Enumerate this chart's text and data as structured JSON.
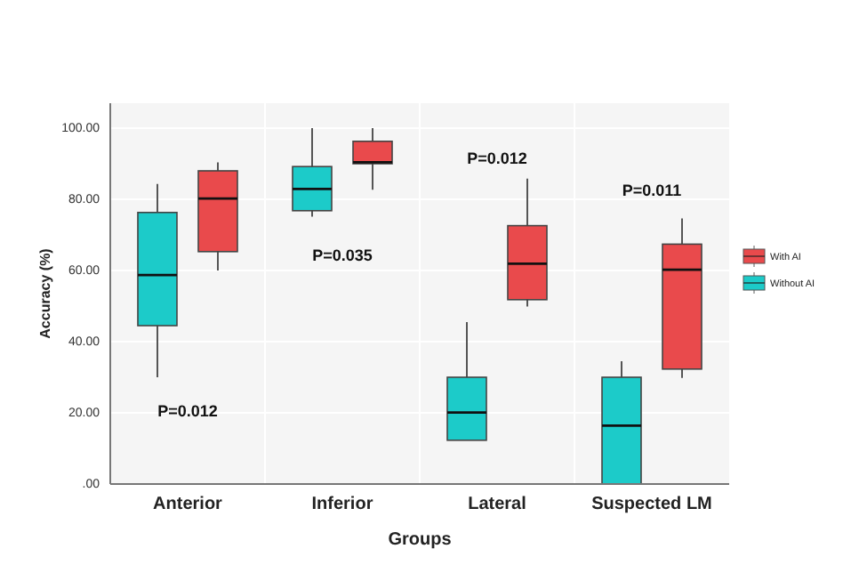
{
  "chart_data": {
    "type": "box",
    "xlabel": "Groups",
    "ylabel": "Accuracy (%)",
    "categories": [
      "Anterior",
      "Inferior",
      "Lateral",
      "Suspected LM"
    ],
    "ylim": [
      0,
      107
    ],
    "yticks": [
      {
        "value": 0,
        "label": ".00"
      },
      {
        "value": 20,
        "label": "20.00"
      },
      {
        "value": 40,
        "label": "40.00"
      },
      {
        "value": 60,
        "label": "60.00"
      },
      {
        "value": 80,
        "label": "80.00"
      },
      {
        "value": 100,
        "label": "100.00"
      }
    ],
    "grid": true,
    "legend": "right",
    "series": [
      {
        "name": "Without AI",
        "color": "#1ccbc9",
        "boxes": [
          {
            "low": 30,
            "q1": 44.5,
            "median": 58.7,
            "q3": 76.3,
            "high": 84.3
          },
          {
            "low": 75.1,
            "q1": 76.8,
            "median": 82.9,
            "q3": 89.2,
            "high": 100
          },
          {
            "low": 12.3,
            "q1": 12.3,
            "median": 20.1,
            "q3": 30,
            "high": 45.5
          },
          {
            "low": 0,
            "q1": 0,
            "median": 16.4,
            "q3": 30,
            "high": 34.5
          }
        ]
      },
      {
        "name": "With AI",
        "color": "#e94a4c",
        "boxes": [
          {
            "low": 60,
            "q1": 65.3,
            "median": 80.2,
            "q3": 88,
            "high": 90.4
          },
          {
            "low": 82.7,
            "q1": 90,
            "median": 90.4,
            "q3": 96.3,
            "high": 100
          },
          {
            "low": 49.9,
            "q1": 51.8,
            "median": 61.9,
            "q3": 72.6,
            "high": 85.8
          },
          {
            "low": 29.8,
            "q1": 32.3,
            "median": 60.2,
            "q3": 67.4,
            "high": 74.6
          }
        ]
      }
    ],
    "annotations": [
      "P=0.012",
      "P=0.035",
      "P=0.012",
      "P=0.011"
    ]
  }
}
